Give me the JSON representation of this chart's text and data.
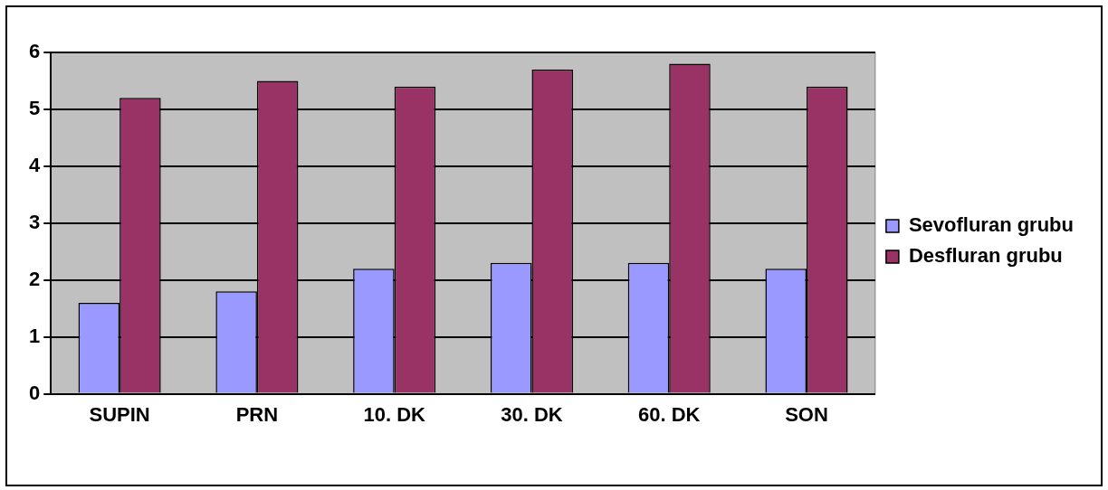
{
  "chart_data": {
    "type": "bar",
    "categories": [
      "SUPIN",
      "PRN",
      "10. DK",
      "30. DK",
      "60. DK",
      "SON"
    ],
    "series": [
      {
        "name": "Sevofluran grubu",
        "color": "#9999ff",
        "values": [
          1.6,
          1.8,
          2.2,
          2.3,
          2.3,
          2.2
        ]
      },
      {
        "name": "Desfluran grubu",
        "color": "#993366",
        "values": [
          5.2,
          5.5,
          5.4,
          5.7,
          5.8,
          5.4
        ]
      }
    ],
    "ylim": [
      0,
      6
    ],
    "yticks": [
      0,
      1,
      2,
      3,
      4,
      5,
      6
    ],
    "grid": "y",
    "legend": "right"
  }
}
